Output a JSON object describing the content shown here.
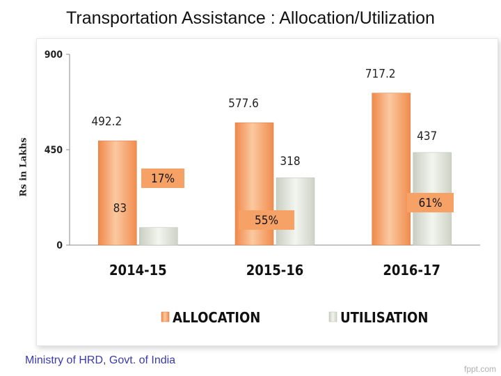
{
  "slide": {
    "title": "Transportation Assistance : Allocation/Utilization",
    "footer": "Ministry of HRD, Govt. of India",
    "watermark": "fppt.com"
  },
  "chart_data": {
    "type": "bar",
    "ylabel": "Rs in Lakhs",
    "ylim": [
      0,
      900
    ],
    "yticks": [
      "0",
      "450",
      "900"
    ],
    "categories": [
      "2014-15",
      "2015-16",
      "2016-17"
    ],
    "series": [
      {
        "name": "ALLOCATION",
        "values": [
          492.2,
          577.6,
          717.2
        ],
        "labels": [
          "492.2",
          "577.6",
          "717.2"
        ],
        "color": "#f5a56c"
      },
      {
        "name": "UTILISATION",
        "values": [
          83,
          318,
          437
        ],
        "labels": [
          "83",
          "318",
          "437"
        ],
        "color": "#dfe3d8"
      }
    ],
    "utilization_percent": [
      "17%",
      "55%",
      "61%"
    ],
    "percent_box_color": "#f6a165",
    "grid": false,
    "legend": "bottom"
  }
}
